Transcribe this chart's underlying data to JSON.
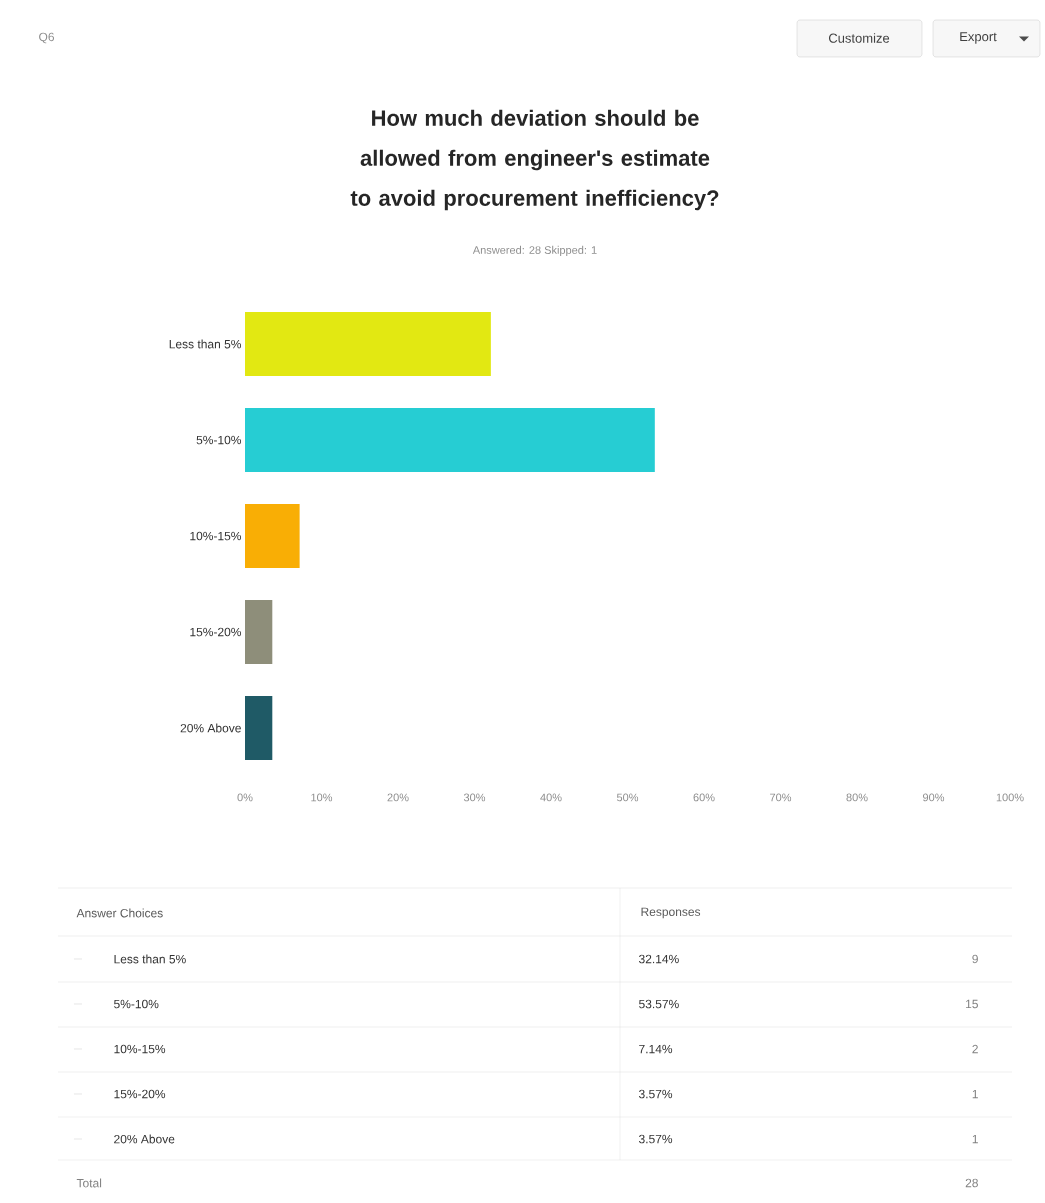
{
  "chart_data": {
    "type": "bar",
    "orientation": "horizontal",
    "title": "How much deviation should be allowed from engineer's estimate to avoid procurement inefficiency?",
    "subtitle": "Answered: 28 Skipped: 1",
    "categories": [
      "Less than 5%",
      "5%-10%",
      "10%-15%",
      "15%-20%",
      "20% Above"
    ],
    "values": [
      32.14,
      53.57,
      7.14,
      3.57,
      3.57
    ],
    "colors": [
      "#e2e812",
      "#26cdd3",
      "#f9ae05",
      "#8e8e7a",
      "#1f5a66"
    ],
    "xlim": [
      0,
      100
    ],
    "xticks": [
      {
        "value": 0,
        "label": "0%"
      },
      {
        "value": 10,
        "label": "10%"
      },
      {
        "value": 20,
        "label": "20%"
      },
      {
        "value": 30,
        "label": "30%"
      },
      {
        "value": 40,
        "label": "40%"
      },
      {
        "value": 50,
        "label": "50%"
      },
      {
        "value": 60,
        "label": "60%"
      },
      {
        "value": 70,
        "label": "70%"
      },
      {
        "value": 80,
        "label": "80%"
      },
      {
        "value": 90,
        "label": "90%"
      },
      {
        "value": 100,
        "label": "100%"
      }
    ],
    "annotations": [
      "Q6",
      "Customize",
      "Export",
      "Answer Choices",
      "Responses",
      "32.14%",
      "9",
      "53.57%",
      "15",
      "7.14%",
      "2",
      "3.57%",
      "1",
      "3.57%",
      "1",
      "Total",
      "28"
    ]
  }
}
